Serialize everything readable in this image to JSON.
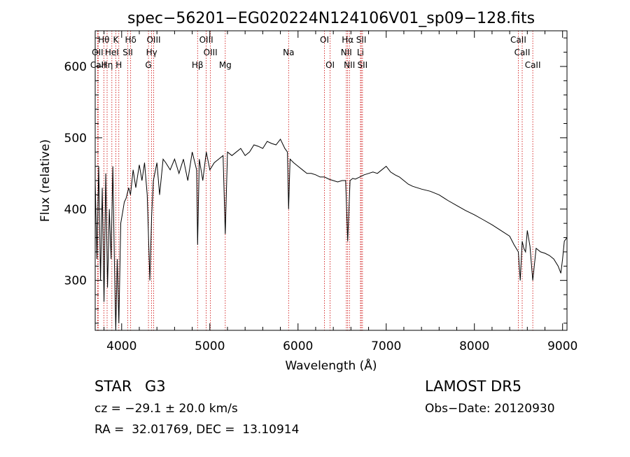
{
  "chart_data": {
    "type": "line",
    "title": "spec−56201−EG020224N124106V01_sp09−128.fits",
    "xlabel": "Wavelength (Å)",
    "ylabel": "Flux (relative)",
    "xlim": [
      3700,
      9050
    ],
    "ylim": [
      230,
      650
    ],
    "x_ticks": [
      4000,
      5000,
      6000,
      7000,
      8000,
      9000
    ],
    "y_ticks": [
      300,
      400,
      500,
      600
    ],
    "grid": false,
    "line_color": "#000000",
    "marker_color": "#cc0000",
    "series": [
      {
        "x": [
          3700,
          3720,
          3740,
          3760,
          3780,
          3800,
          3820,
          3840,
          3860,
          3880,
          3900,
          3920,
          3933,
          3950,
          3968,
          3990,
          4010,
          4030,
          4050,
          4080,
          4100,
          4130,
          4160,
          4200,
          4230,
          4260,
          4290,
          4320,
          4340,
          4360,
          4400,
          4430,
          4470,
          4500,
          4550,
          4600,
          4650,
          4700,
          4750,
          4800,
          4850,
          4861,
          4880,
          4920,
          4960,
          5000,
          5050,
          5100,
          5150,
          5175,
          5200,
          5250,
          5300,
          5350,
          5400,
          5450,
          5500,
          5550,
          5600,
          5650,
          5700,
          5750,
          5800,
          5850,
          5880,
          5893,
          5910,
          5950,
          6000,
          6050,
          6100,
          6150,
          6200,
          6250,
          6300,
          6350,
          6400,
          6450,
          6500,
          6540,
          6563,
          6590,
          6620,
          6650,
          6700,
          6750,
          6800,
          6850,
          6900,
          6950,
          7000,
          7050,
          7100,
          7150,
          7200,
          7250,
          7300,
          7400,
          7500,
          7600,
          7700,
          7800,
          7900,
          8000,
          8100,
          8200,
          8300,
          8400,
          8450,
          8498,
          8520,
          8542,
          8560,
          8580,
          8600,
          8630,
          8662,
          8700,
          8750,
          8800,
          8850,
          8900,
          8950,
          8980,
          9000,
          9020,
          9050
        ],
        "y": [
          440,
          330,
          460,
          300,
          430,
          270,
          450,
          290,
          400,
          330,
          460,
          310,
          230,
          330,
          240,
          380,
          395,
          410,
          415,
          430,
          420,
          455,
          430,
          462,
          440,
          465,
          420,
          300,
          390,
          440,
          465,
          420,
          470,
          465,
          455,
          470,
          450,
          470,
          440,
          480,
          455,
          350,
          470,
          440,
          480,
          455,
          465,
          470,
          475,
          365,
          480,
          475,
          480,
          485,
          475,
          480,
          490,
          488,
          485,
          495,
          492,
          490,
          498,
          485,
          480,
          400,
          470,
          465,
          460,
          455,
          450,
          450,
          448,
          445,
          445,
          442,
          440,
          438,
          440,
          440,
          355,
          440,
          443,
          442,
          445,
          448,
          450,
          452,
          450,
          455,
          460,
          452,
          448,
          445,
          440,
          435,
          432,
          428,
          425,
          420,
          412,
          405,
          398,
          392,
          385,
          378,
          370,
          362,
          350,
          340,
          300,
          355,
          345,
          340,
          370,
          348,
          300,
          345,
          340,
          338,
          335,
          330,
          320,
          310,
          330,
          355,
          360
        ]
      }
    ],
    "annotations": [
      {
        "label": "Hθ",
        "x": 3798,
        "row": 0
      },
      {
        "label": "K",
        "x": 3934,
        "row": 0
      },
      {
        "label": "Hδ",
        "x": 4102,
        "row": 0
      },
      {
        "label": "OIII",
        "x": 4363,
        "row": 0
      },
      {
        "label": "OIII",
        "x": 4959,
        "row": 0
      },
      {
        "label": "OI",
        "x": 6300,
        "row": 0
      },
      {
        "label": "Hα",
        "x": 6563,
        "row": 0
      },
      {
        "label": "SII",
        "x": 6717,
        "row": 0
      },
      {
        "label": "CaII",
        "x": 8498,
        "row": 0
      },
      {
        "label": "OII",
        "x": 3727,
        "row": 1
      },
      {
        "label": "HeI",
        "x": 3889,
        "row": 1
      },
      {
        "label": "SII",
        "x": 4070,
        "row": 1
      },
      {
        "label": "Hγ",
        "x": 4340,
        "row": 1
      },
      {
        "label": "OIII",
        "x": 5007,
        "row": 1
      },
      {
        "label": "Na",
        "x": 5893,
        "row": 1
      },
      {
        "label": "NII",
        "x": 6548,
        "row": 1
      },
      {
        "label": "Li",
        "x": 6708,
        "row": 1
      },
      {
        "label": "CaII",
        "x": 8542,
        "row": 1
      },
      {
        "label": "CaII",
        "x": 3734,
        "row": 2
      },
      {
        "label": "Hη",
        "x": 3835,
        "row": 2
      },
      {
        "label": "H",
        "x": 3968,
        "row": 2
      },
      {
        "label": "G",
        "x": 4304,
        "row": 2
      },
      {
        "label": "Hβ",
        "x": 4861,
        "row": 2
      },
      {
        "label": "Mg",
        "x": 5175,
        "row": 2
      },
      {
        "label": "OI",
        "x": 6364,
        "row": 2
      },
      {
        "label": "NII",
        "x": 6583,
        "row": 2
      },
      {
        "label": "SII",
        "x": 6731,
        "row": 2
      },
      {
        "label": "CaII",
        "x": 8662,
        "row": 2
      }
    ],
    "line_markers": [
      3727,
      3734,
      3798,
      3835,
      3889,
      3934,
      3968,
      4070,
      4102,
      4304,
      4340,
      4363,
      4861,
      4959,
      5007,
      5175,
      5893,
      6300,
      6364,
      6548,
      6563,
      6583,
      6708,
      6717,
      6731,
      8498,
      8542,
      8662
    ]
  },
  "footer": {
    "object_class": "STAR",
    "subclass": "G3",
    "survey": "LAMOST DR5",
    "cz": "cz = −29.1 ± 20.0 km/s",
    "obs_date": "Obs−Date: 20120930",
    "radec": "RA =  32.01769, DEC =  13.10914"
  }
}
